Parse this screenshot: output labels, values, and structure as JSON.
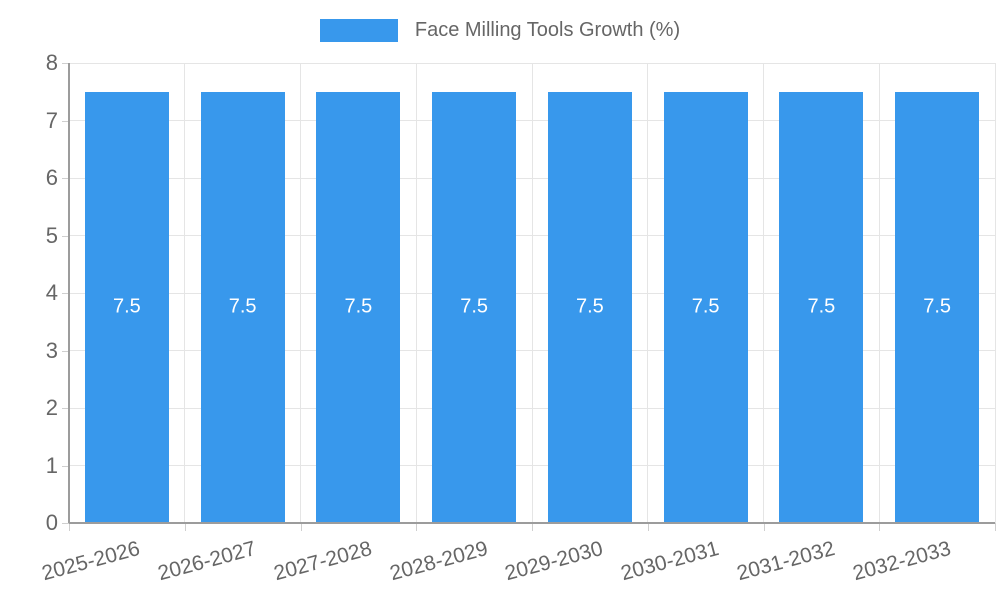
{
  "legend": {
    "items": [
      {
        "label": "Face Milling Tools Growth (%)",
        "color": "#3898EC"
      }
    ]
  },
  "colors": {
    "bar": "#3898EC",
    "bar_label": "#FFFFFF",
    "grid": "#E5E5E5",
    "axis": "#9C9C9C",
    "tick": "#CFCFCF",
    "text": "#666666",
    "background": "#FFFFFF"
  },
  "chart_data": {
    "type": "bar",
    "title": "Face Milling Tools Growth (%)",
    "categories": [
      "2025-2026",
      "2026-2027",
      "2027-2028",
      "2028-2029",
      "2029-2030",
      "2030-2031",
      "2031-2032",
      "2032-2033"
    ],
    "values": [
      7.5,
      7.5,
      7.5,
      7.5,
      7.5,
      7.5,
      7.5,
      7.5
    ],
    "bar_labels": [
      "7.5",
      "7.5",
      "7.5",
      "7.5",
      "7.5",
      "7.5",
      "7.5",
      "7.5"
    ],
    "xlabel": "",
    "ylabel": "",
    "ylim": [
      0,
      8
    ],
    "yticks": [
      0,
      1,
      2,
      3,
      4,
      5,
      6,
      7,
      8
    ],
    "grid": true,
    "legend_position": "top",
    "x_tick_rotation_deg": -15
  }
}
